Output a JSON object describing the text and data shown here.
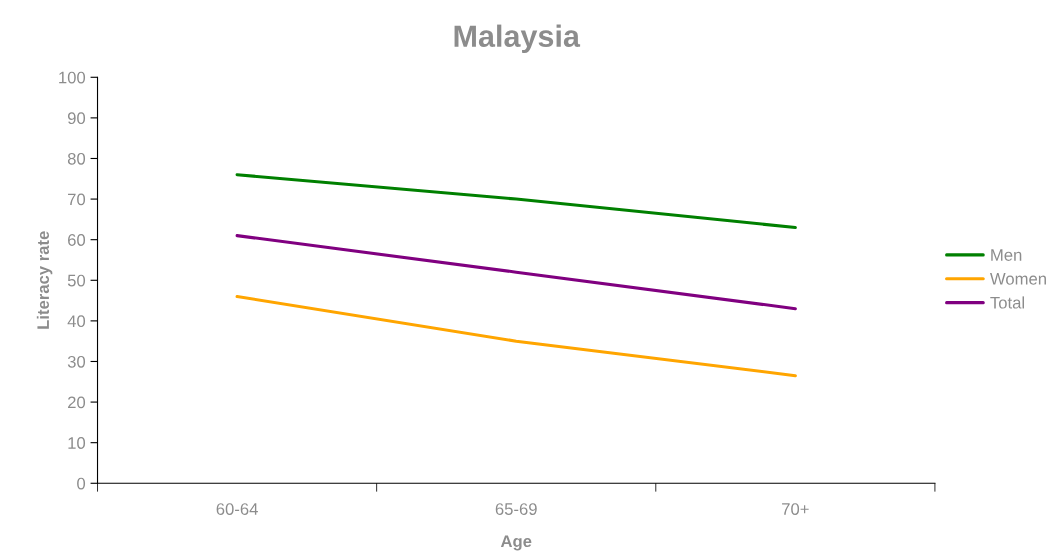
{
  "chart_data": {
    "type": "line",
    "title": "Malaysia",
    "xlabel": "Age",
    "ylabel": "Literacy rate",
    "categories": [
      "60-64",
      "65-69",
      "70+"
    ],
    "series": [
      {
        "name": "Men",
        "color": "#008000",
        "values": [
          76,
          70,
          63
        ]
      },
      {
        "name": "Women",
        "color": "#ffa500",
        "values": [
          46,
          35,
          26.5
        ]
      },
      {
        "name": "Total",
        "color": "#800080",
        "values": [
          61,
          52,
          43
        ]
      }
    ],
    "ylim": [
      0,
      100
    ],
    "yticks": [
      0,
      10,
      20,
      30,
      40,
      50,
      60,
      70,
      80,
      90,
      100
    ],
    "grid": false,
    "legend": "right",
    "marker": "none",
    "line_style": "solid"
  }
}
